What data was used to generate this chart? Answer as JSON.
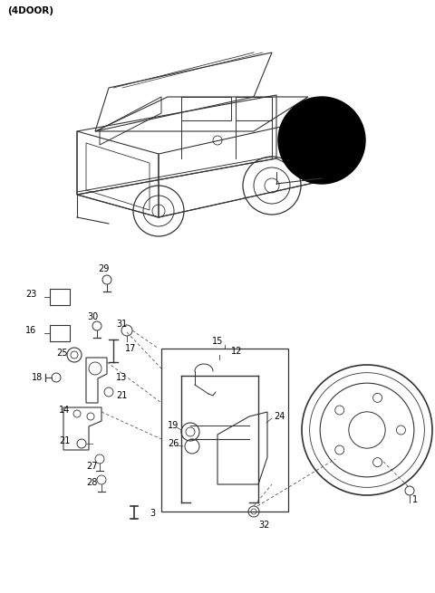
{
  "title": "(4DOOR)",
  "bg_color": "#ffffff",
  "line_color": "#333333",
  "fig_width": 4.8,
  "fig_height": 6.55,
  "dpi": 100
}
